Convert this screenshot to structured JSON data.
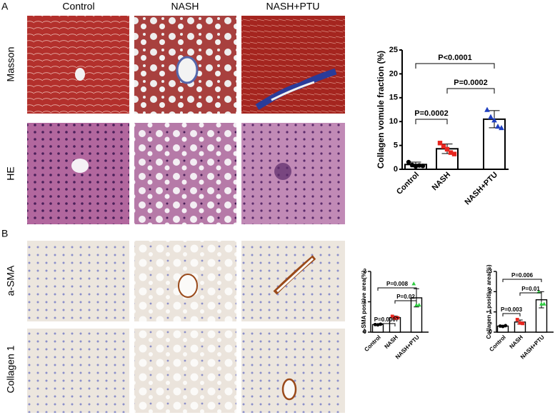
{
  "panel_labels": [
    "A",
    "B"
  ],
  "column_headers": [
    "Control",
    "NASH",
    "NASH+PTU"
  ],
  "row_labels": [
    "Masson",
    "HE",
    "a-SMA",
    "Collagen 1"
  ],
  "charts": [
    {
      "type": "bar",
      "ylabel": "Collagen vomule fraction (%)",
      "categories": [
        "Control",
        "NASH",
        "NASH+PTU"
      ],
      "values": [
        1.0,
        4.3,
        10.5
      ],
      "errors": [
        0.5,
        1.0,
        1.8
      ],
      "points": [
        [
          1.5,
          0.9,
          0.6,
          0.8,
          0.7
        ],
        [
          5.5,
          4.8,
          4.2,
          3.5,
          3.2
        ],
        [
          12.5,
          11.0,
          10.3,
          9.0,
          8.7
        ]
      ],
      "point_colors": [
        "#000000",
        "#e8261f",
        "#1f3fbf"
      ],
      "ylim": [
        0,
        25
      ],
      "yticks": [
        0,
        5,
        10,
        15,
        20,
        25
      ],
      "annotations": [
        "P=0.0002",
        "P=0.0002",
        "P<0.0001"
      ]
    },
    {
      "type": "bar",
      "ylabel": "a-SMA positive area(%)",
      "categories": [
        "Control",
        "NASH",
        "NASH+PTU"
      ],
      "values": [
        0.25,
        0.48,
        1.13
      ],
      "errors": [
        0.02,
        0.05,
        0.3
      ],
      "points": [
        [
          0.25,
          0.24,
          0.26
        ],
        [
          0.52,
          0.46,
          0.47
        ],
        [
          1.6,
          0.9,
          0.9
        ]
      ],
      "point_colors": [
        "#000000",
        "#e8261f",
        "#2ecc40"
      ],
      "ylim": [
        0,
        2
      ],
      "yticks": [
        0,
        1,
        2
      ],
      "annotations": [
        "P=0.0007",
        "P=0.02",
        "P=0.008"
      ]
    },
    {
      "type": "bar",
      "ylabel": "Collagen 1 positive area(%)",
      "categories": [
        "Control",
        "NASH",
        "NASH+PTU"
      ],
      "values": [
        0.3,
        0.5,
        1.6
      ],
      "errors": [
        0.04,
        0.1,
        0.4
      ],
      "points": [
        [
          0.3,
          0.28,
          0.32
        ],
        [
          0.62,
          0.45,
          0.43
        ],
        [
          2.0,
          1.4,
          1.4
        ]
      ],
      "point_colors": [
        "#000000",
        "#e8261f",
        "#2ecc40"
      ],
      "ylim": [
        0,
        3
      ],
      "yticks": [
        0,
        1,
        2,
        3
      ],
      "annotations": [
        "P=0.003",
        "P=0.01",
        "P=0.006"
      ]
    }
  ]
}
